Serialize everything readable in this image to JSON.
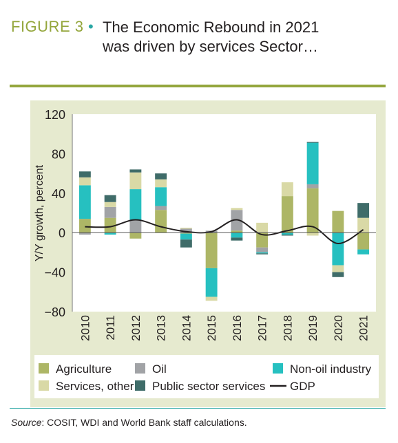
{
  "figure": {
    "label": "FIGURE 3",
    "title": "The Economic Rebound in 2021 was driven by services Sector…"
  },
  "source": {
    "label": "Source",
    "text": ": COSIT, WDI and World Bank staff calculations."
  },
  "chart_data": {
    "type": "bar",
    "stacked": true,
    "ylabel": "Y/Y growth, percent",
    "xlabel": "",
    "ylim": [
      -80,
      120
    ],
    "yticks": [
      120,
      80,
      40,
      0,
      -40,
      -80
    ],
    "ytick_labels": [
      "120",
      "80",
      "40",
      "0",
      "−40",
      "−80"
    ],
    "grid": false,
    "legend_position": "bottom",
    "categories": [
      "2010",
      "2011",
      "2012",
      "2013",
      "2014",
      "2015",
      "2016",
      "2017",
      "2018",
      "2019",
      "2020",
      "2021"
    ],
    "series": [
      {
        "name": "Agriculture",
        "color": "#adb666",
        "values": [
          14,
          15,
          -6,
          23,
          -1,
          -36,
          2,
          -15,
          37,
          45,
          22,
          -17
        ]
      },
      {
        "name": "Oil",
        "color": "#a1a3a6",
        "values": [
          -2,
          11,
          13,
          4,
          4,
          2,
          21,
          -5,
          0,
          4,
          0,
          0
        ]
      },
      {
        "name": "Non-oil industry",
        "color": "#26c0c0",
        "values": [
          34,
          -2,
          31,
          19,
          -6,
          -29,
          -5,
          -1,
          -2,
          42,
          -33,
          -5
        ]
      },
      {
        "name": "Services, other",
        "color": "#d9d9a6",
        "values": [
          8,
          5,
          17,
          8,
          1,
          -4,
          2,
          10,
          14,
          -3,
          -7,
          15
        ]
      },
      {
        "name": "Public sector services",
        "color": "#3f6c69",
        "values": [
          6,
          7,
          3,
          6,
          -8,
          0,
          -3,
          -1,
          -1,
          1,
          -5,
          15
        ]
      }
    ],
    "line_series": {
      "name": "GDP",
      "color": "#231f20",
      "values": [
        6,
        6,
        13,
        6,
        1,
        1,
        13,
        -2,
        2,
        6,
        -11,
        3
      ]
    }
  }
}
